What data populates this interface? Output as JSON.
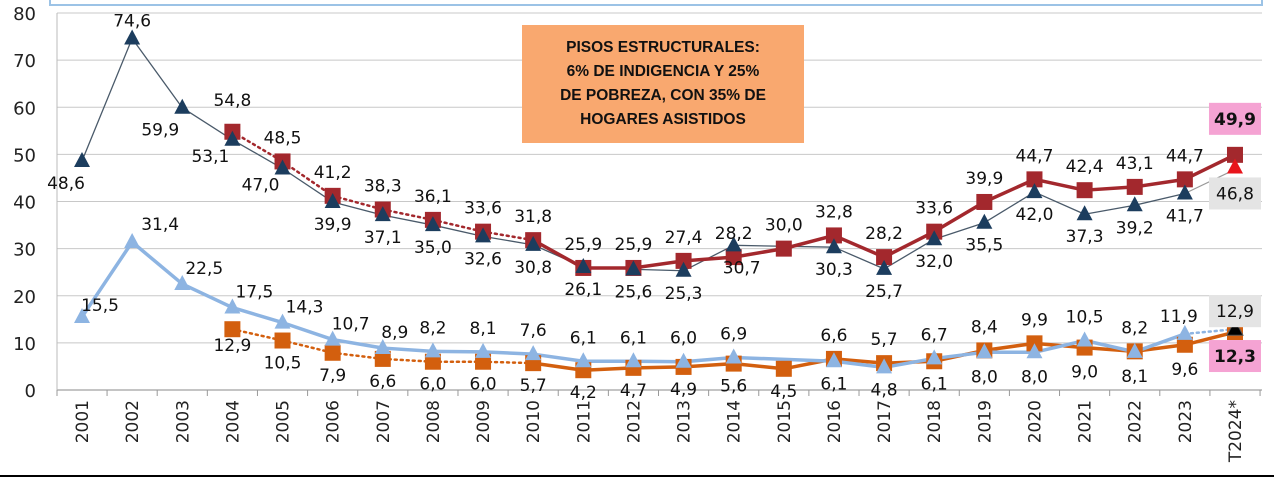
{
  "chart_data": {
    "type": "line",
    "title": "",
    "xlabel": "",
    "ylabel": "",
    "ylim": [
      0,
      80
    ],
    "yticks": [
      0,
      10,
      20,
      30,
      40,
      50,
      60,
      70,
      80
    ],
    "grid": true,
    "legend": "none",
    "categories": [
      "2001",
      "2002",
      "2003",
      "2004",
      "2005",
      "2006",
      "2007",
      "2008",
      "2009",
      "2010",
      "2011",
      "2012",
      "2013",
      "2014",
      "2015",
      "2016",
      "2017",
      "2018",
      "2019",
      "2020",
      "2021",
      "2022",
      "2023",
      "T2024*"
    ],
    "series": [
      {
        "key": "pov_tri",
        "color": "#1c3d5e",
        "line_color": "#4a5a6a",
        "marker": "triangle",
        "values": [
          48.6,
          74.6,
          59.9,
          53.1,
          47.0,
          39.9,
          37.1,
          35.0,
          32.6,
          30.8,
          26.1,
          25.6,
          25.3,
          30.7,
          null,
          30.3,
          25.7,
          32.0,
          35.5,
          42.0,
          37.3,
          39.2,
          41.7,
          46.8
        ]
      },
      {
        "key": "pov_sq",
        "color": "#a3282d",
        "marker": "square",
        "values": [
          null,
          null,
          null,
          54.8,
          48.5,
          41.2,
          38.3,
          36.1,
          33.6,
          31.8,
          25.9,
          25.9,
          27.4,
          28.2,
          30.0,
          32.8,
          28.2,
          33.6,
          39.9,
          44.7,
          42.4,
          43.1,
          44.7,
          49.9
        ]
      },
      {
        "key": "ind_tri",
        "color": "#8db4e2",
        "marker": "triangle",
        "values": [
          15.5,
          31.4,
          22.5,
          17.5,
          14.3,
          10.7,
          8.9,
          8.2,
          8.1,
          7.6,
          6.1,
          6.1,
          6.0,
          6.9,
          null,
          6.1,
          4.8,
          6.7,
          8.0,
          8.0,
          10.5,
          8.1,
          11.9,
          12.9
        ]
      },
      {
        "key": "ind_sq",
        "color": "#d35f0e",
        "marker": "square",
        "values": [
          null,
          null,
          null,
          12.9,
          10.5,
          7.9,
          6.6,
          6.0,
          6.0,
          5.7,
          4.2,
          4.7,
          4.9,
          5.6,
          4.5,
          6.6,
          5.7,
          6.1,
          8.4,
          9.9,
          9.0,
          8.2,
          9.6,
          12.3
        ]
      }
    ],
    "annotation": {
      "lines": [
        "PISOS ESTRUCTURALES:",
        "6% DE INDIGENCIA Y 25%",
        "DE POBREZA, CON 35% DE",
        "HOGARES ASISTIDOS"
      ],
      "color": "#f9a86f"
    },
    "highlight_colors": {
      "pink": "#f5a3d3",
      "grey": "#e4e4e4"
    }
  }
}
